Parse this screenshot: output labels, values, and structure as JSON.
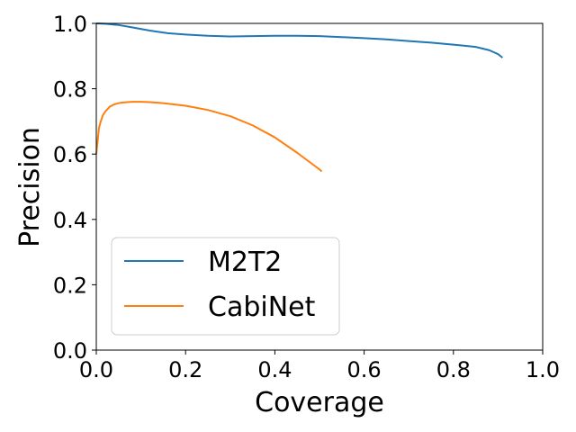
{
  "chart_data": {
    "type": "line",
    "xlabel": "Coverage",
    "ylabel": "Precision",
    "xlim": [
      0.0,
      1.0
    ],
    "ylim": [
      0.0,
      1.0
    ],
    "xticks": [
      "0.0",
      "0.2",
      "0.4",
      "0.6",
      "0.8",
      "1.0"
    ],
    "yticks": [
      "0.0",
      "0.2",
      "0.4",
      "0.6",
      "0.8",
      "1.0"
    ],
    "grid": false,
    "legend_position": "lower-left",
    "series": [
      {
        "name": "M2T2",
        "color": "#1f77b4",
        "x": [
          0.0,
          0.02,
          0.05,
          0.08,
          0.12,
          0.16,
          0.2,
          0.25,
          0.3,
          0.35,
          0.4,
          0.45,
          0.5,
          0.55,
          0.6,
          0.65,
          0.7,
          0.75,
          0.8,
          0.85,
          0.88,
          0.9,
          0.91
        ],
        "y": [
          1.0,
          0.999,
          0.995,
          0.988,
          0.978,
          0.97,
          0.966,
          0.962,
          0.96,
          0.961,
          0.962,
          0.962,
          0.961,
          0.958,
          0.955,
          0.951,
          0.946,
          0.941,
          0.935,
          0.928,
          0.918,
          0.906,
          0.895
        ]
      },
      {
        "name": "CabiNet",
        "color": "#ff7f0e",
        "x": [
          0.0,
          0.003,
          0.006,
          0.01,
          0.015,
          0.02,
          0.03,
          0.04,
          0.05,
          0.06,
          0.08,
          0.1,
          0.12,
          0.15,
          0.2,
          0.25,
          0.3,
          0.35,
          0.4,
          0.45,
          0.5,
          0.505
        ],
        "y": [
          0.6,
          0.64,
          0.68,
          0.7,
          0.72,
          0.73,
          0.745,
          0.752,
          0.756,
          0.758,
          0.76,
          0.76,
          0.759,
          0.756,
          0.748,
          0.735,
          0.716,
          0.688,
          0.651,
          0.604,
          0.553,
          0.547
        ]
      }
    ]
  }
}
